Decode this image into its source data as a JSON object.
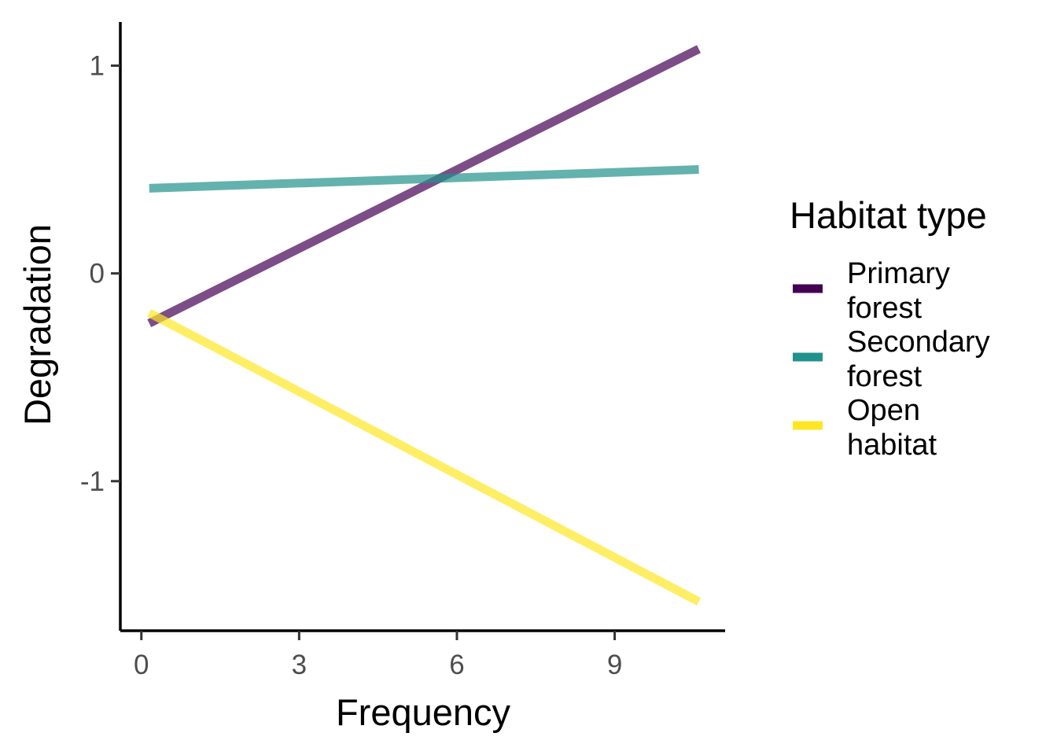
{
  "chart_data": {
    "type": "line",
    "title": "",
    "xlabel": "Frequency",
    "ylabel": "Degradation",
    "xlim": [
      -0.4,
      11.1
    ],
    "ylim": [
      -1.72,
      1.21
    ],
    "x_ticks": [
      0,
      3,
      6,
      9
    ],
    "x_tick_labels": [
      "0",
      "3",
      "6",
      "9"
    ],
    "y_ticks": [
      1,
      0,
      -1
    ],
    "y_tick_labels": [
      "1",
      "0",
      "-1"
    ],
    "grid": false,
    "legend": {
      "title": "Habitat type",
      "placement": "right"
    },
    "series": [
      {
        "name": "Primary forest",
        "label_lines": [
          "Primary",
          "forest"
        ],
        "color": "#440154",
        "x": [
          0.15,
          10.6
        ],
        "y": [
          -0.24,
          1.08
        ]
      },
      {
        "name": "Secondary forest",
        "label_lines": [
          "Secondary",
          "forest"
        ],
        "color": "#21918C",
        "x": [
          0.15,
          10.6
        ],
        "y": [
          0.41,
          0.5
        ]
      },
      {
        "name": "Open habitat",
        "label_lines": [
          "Open",
          "habitat"
        ],
        "color": "#FDE725",
        "x": [
          0.15,
          10.6
        ],
        "y": [
          -0.19,
          -1.58
        ]
      }
    ]
  }
}
